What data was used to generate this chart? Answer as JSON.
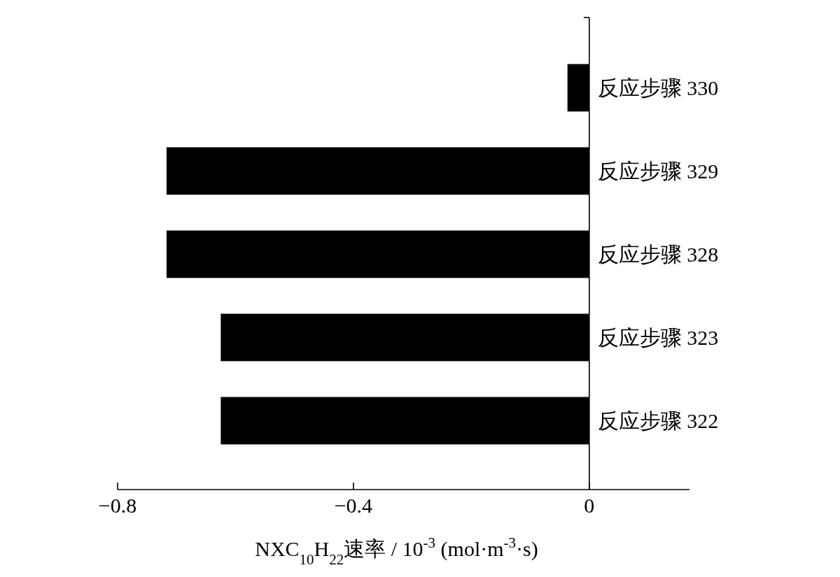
{
  "chart_data": {
    "type": "bar",
    "orientation": "horizontal",
    "xlabel": "NXC$_{10}$H$_{22}$速率 / 10$^{-3}$ (mol·m$^{-3}$·s)",
    "categories": [
      "反应步骤 330",
      "反应步骤 329",
      "反应步骤 328",
      "反应步骤 323",
      "反应步骤 322"
    ],
    "values": [
      -0.037,
      -0.717,
      -0.717,
      -0.625,
      -0.625
    ],
    "color": "#000000",
    "xlim": [
      -0.8,
      0.17
    ],
    "xticks": [
      {
        "value": -0.8,
        "label": "−0.8"
      },
      {
        "value": -0.4,
        "label": "−0.4"
      },
      0
    ]
  }
}
